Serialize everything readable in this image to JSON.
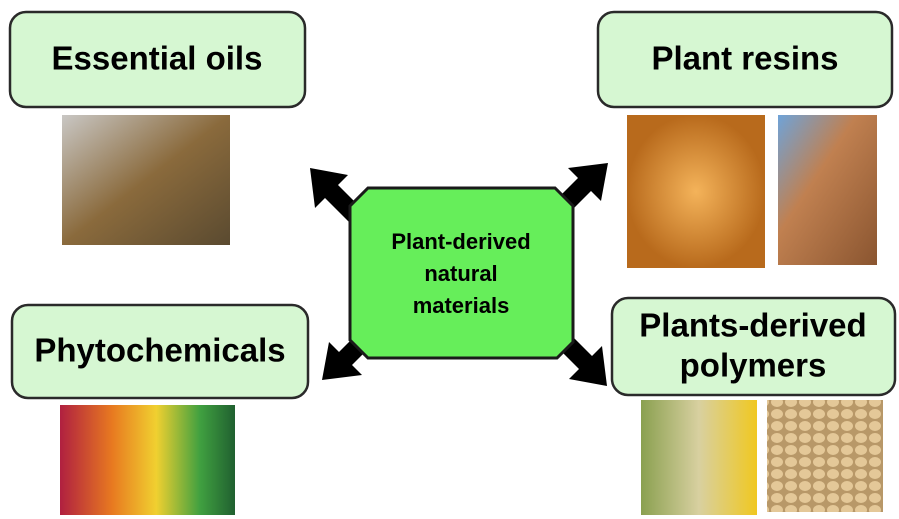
{
  "center": {
    "lines": [
      "Plant-derived",
      "natural",
      "materials"
    ]
  },
  "nodes": [
    {
      "lines": [
        "Essential oils"
      ]
    },
    {
      "lines": [
        "Plant resins"
      ]
    },
    {
      "lines": [
        "Phytochemicals"
      ]
    },
    {
      "lines": [
        "Plants-derived",
        "polymers"
      ]
    }
  ]
}
